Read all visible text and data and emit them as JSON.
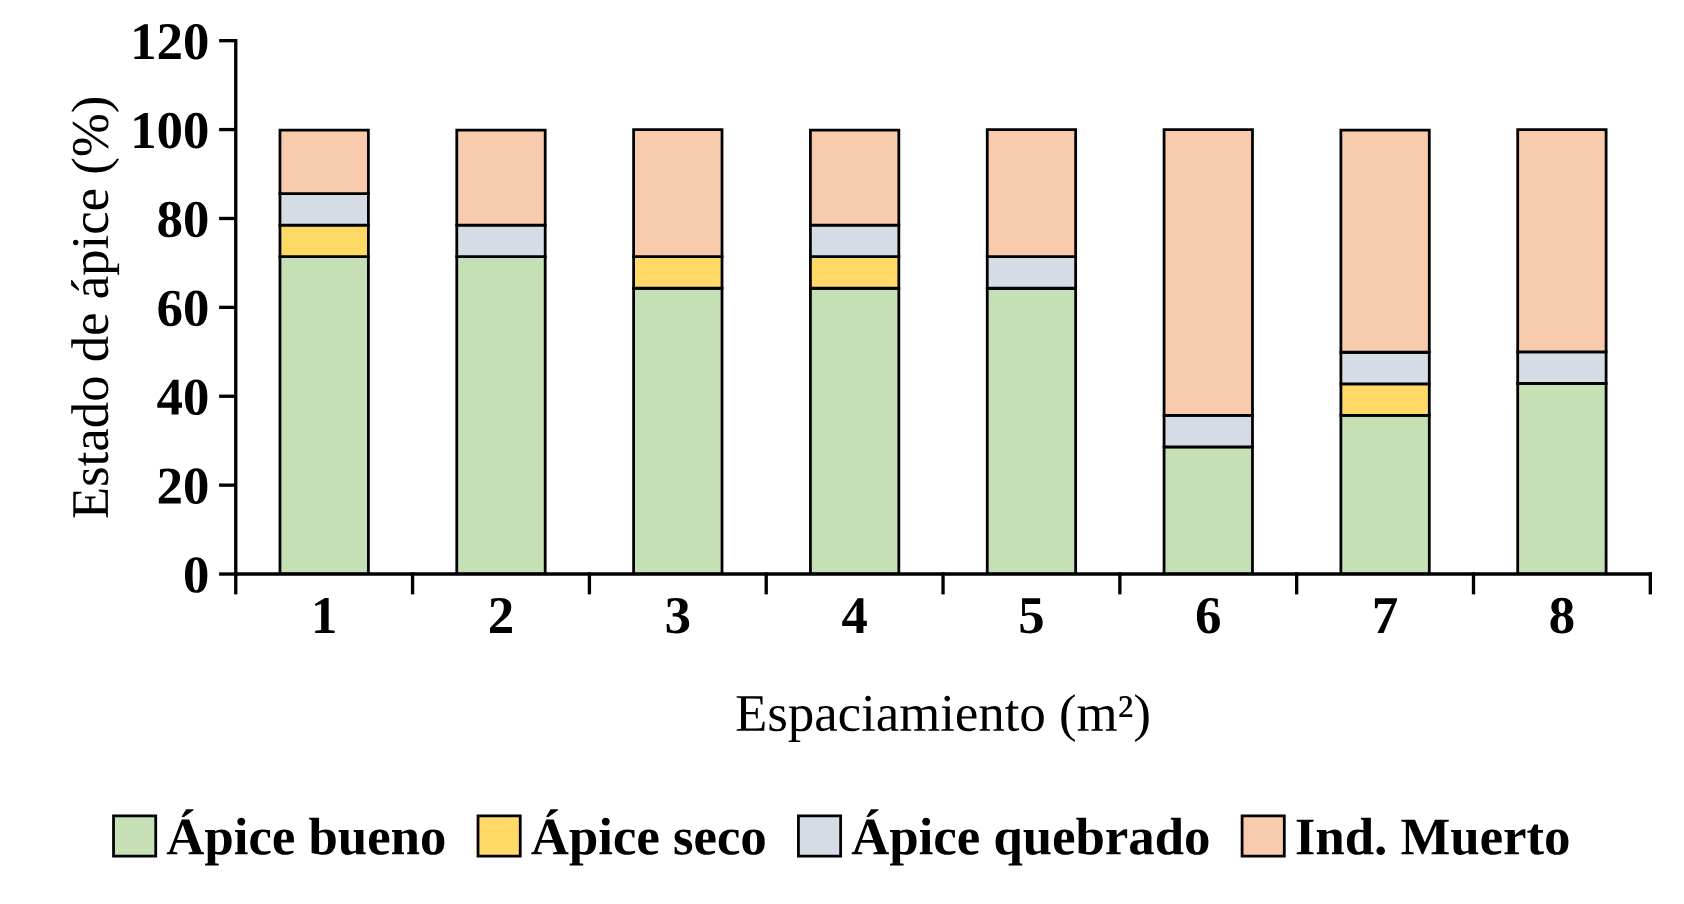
{
  "chart_data": {
    "type": "bar",
    "stacked": true,
    "xlabel": "Espaciamiento (m²)",
    "ylabel": "Estado de ápice (%)",
    "categories": [
      "1",
      "2",
      "3",
      "4",
      "5",
      "6",
      "7",
      "8"
    ],
    "series": [
      {
        "name": "Ápice bueno",
        "color": "#c5e0b4",
        "values": [
          71.4,
          71.4,
          64.3,
          64.3,
          64.3,
          28.6,
          35.7,
          42.9
        ]
      },
      {
        "name": "Ápice seco",
        "color": "#ffd966",
        "values": [
          7.1,
          0,
          7.1,
          7.1,
          0,
          0,
          7.1,
          0
        ]
      },
      {
        "name": "Ápice quebrado",
        "color": "#d6dce5",
        "values": [
          7.1,
          7.1,
          0,
          7.1,
          7.1,
          7.1,
          7.1,
          7.1
        ]
      },
      {
        "name": "Ind. Muerto",
        "color": "#f8cbad",
        "values": [
          14.3,
          21.4,
          28.6,
          21.4,
          28.6,
          64.3,
          50,
          50
        ]
      }
    ],
    "ylim": [
      0,
      120
    ],
    "yticks": [
      0,
      20,
      40,
      60,
      80,
      100,
      120
    ],
    "grid": false,
    "legend": "bottom"
  }
}
